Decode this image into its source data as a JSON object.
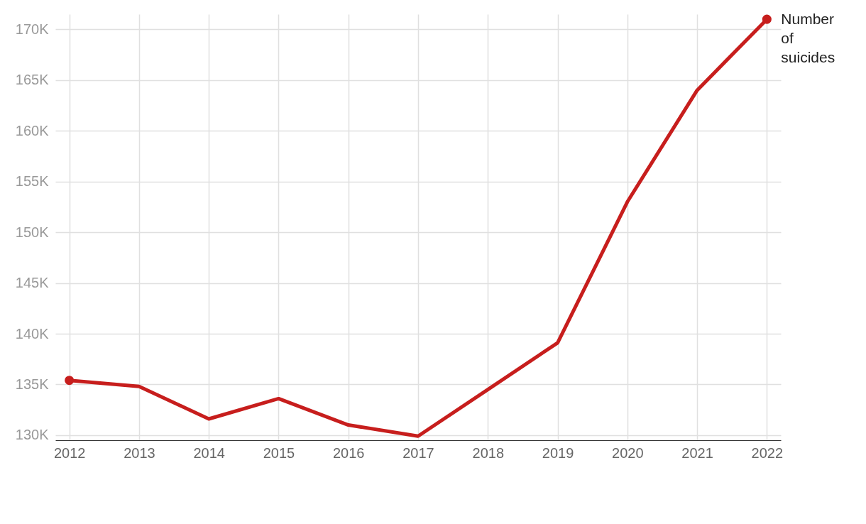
{
  "chart_data": {
    "type": "line",
    "x": [
      2012,
      2013,
      2014,
      2015,
      2016,
      2017,
      2018,
      2019,
      2020,
      2021,
      2022
    ],
    "series": [
      {
        "name": "Number of suicides",
        "color": "#c71e1d",
        "marker": "none",
        "values": [
          135400,
          134800,
          131600,
          133600,
          131000,
          129900,
          134500,
          139100,
          153000,
          164000,
          171000
        ]
      },
      {
        "type": "scatter",
        "color": "#c71e1d",
        "marker": "circle",
        "x": [
          2012,
          2022
        ],
        "values": [
          135400,
          171000
        ]
      }
    ],
    "xlim": [
      2011.8,
      2022.2
    ],
    "xticks": [
      2012,
      2013,
      2014,
      2015,
      2016,
      2017,
      2018,
      2019,
      2020,
      2021,
      2022
    ],
    "ylim": [
      129500,
      171500
    ],
    "yticks": [
      {
        "value": 130000,
        "label": "130K"
      },
      {
        "value": 135000,
        "label": "135K"
      },
      {
        "value": 140000,
        "label": "140K"
      },
      {
        "value": 145000,
        "label": "145K"
      },
      {
        "value": 150000,
        "label": "150K"
      },
      {
        "value": 155000,
        "label": "155K"
      },
      {
        "value": 160000,
        "label": "160K"
      },
      {
        "value": 165000,
        "label": "165K"
      },
      {
        "value": 170000,
        "label": "170K"
      }
    ],
    "grid": true,
    "line_style": "solid"
  }
}
